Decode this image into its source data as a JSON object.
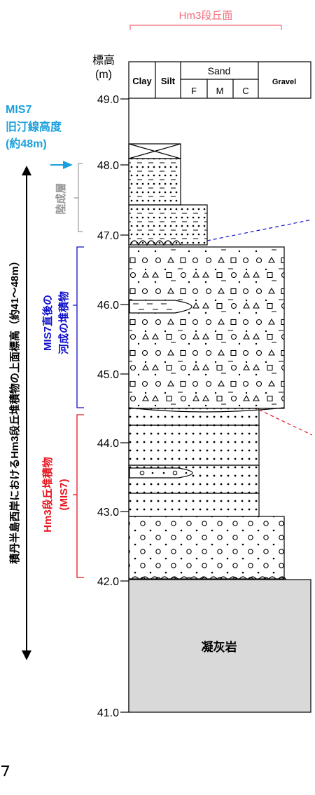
{
  "header": {
    "top_label": "Hm3段丘面"
  },
  "column_header": {
    "elevation_label": "標高",
    "elevation_unit": "(m)",
    "clay": "Clay",
    "silt": "Silt",
    "sand": "Sand",
    "sand_f": "F",
    "sand_m": "M",
    "sand_c": "C",
    "gravel": "Gravel"
  },
  "axis": {
    "ticks": [
      "49.0",
      "48.0",
      "47.0",
      "46.0",
      "45.0",
      "44.0",
      "43.0",
      "42.0",
      "41.0"
    ]
  },
  "annotations": {
    "mis7_title": "MIS7",
    "mis7_shoreline": "旧汀線高度",
    "mis7_height": "(約48m)",
    "terrestrial": "陸成層",
    "fluvial_line1": "MIS7直後の",
    "fluvial_line2": "河成の堆積物",
    "hm3_line1": "Hm3段丘堆積物",
    "hm3_line2": "(MIS7)",
    "vertical_note": "積丹半島西岸におけるHm3段丘堆積物の上面標高（約41～48m）",
    "bedrock": "凝灰岩"
  },
  "colors": {
    "mis7_cyan": "#1aa0dc",
    "terrestrial_gray": "#999999",
    "fluvial_blue": "#1010cc",
    "hm3_red": "#e8141e",
    "header_pink": "#f06a78",
    "bedrock_fill": "#d9d9d9"
  }
}
